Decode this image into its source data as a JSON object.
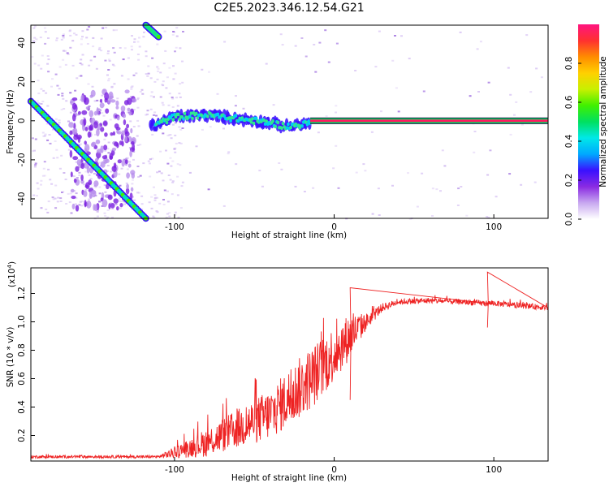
{
  "title": "C2E5.2023.346.12.54.G21",
  "chart_data": [
    {
      "type": "heatmap",
      "xlabel": "Height of straight line (km)",
      "ylabel": "Frequency (Hz)",
      "xlim": [
        -190,
        134
      ],
      "ylim": [
        -50,
        49
      ],
      "xticks": [
        -100,
        0,
        100
      ],
      "yticks": [
        -40,
        -20,
        0,
        20,
        40
      ],
      "colorbar": {
        "label": "Normalized spectral amplitude",
        "range": [
          0,
          1
        ],
        "ticks": [
          "0.0",
          "0.2",
          "0.4",
          "0.6",
          "0.8"
        ],
        "colors": [
          "#ffffff",
          "#c8a8f0",
          "#8a2be2",
          "#3a10ff",
          "#00a8ff",
          "#00e8e8",
          "#00e060",
          "#40f000",
          "#c8f000",
          "#ffd000",
          "#ff8c00",
          "#ff3030",
          "#ff1480"
        ]
      },
      "tracks": [
        {
          "name_desc": "",
          "x": [
            -190,
            -118
          ],
          "y": [
            10,
            -50
          ]
        },
        {
          "x": [
            -118,
            -110
          ],
          "y": [
            49,
            43
          ]
        },
        {
          "x": [
            -115,
            -100,
            -80,
            -60,
            -40,
            -30,
            -20,
            -10,
            0,
            10,
            20,
            134
          ],
          "y": [
            -3,
            2,
            3,
            1,
            -1,
            -3,
            -2,
            0,
            0,
            0,
            0,
            0
          ]
        }
      ]
    },
    {
      "type": "line",
      "xlabel": "Height of straight line (km)",
      "ylabel": "SNR (10 * v/v)",
      "yscale_label": "(x10",
      "yscale_exp": "4",
      "xlim": [
        -190,
        134
      ],
      "ylim": [
        0.02,
        1.38
      ],
      "xticks": [
        -100,
        0,
        100
      ],
      "yticks": [
        "0.2",
        "0.4",
        "0.6",
        "0.8",
        "1.0",
        "1.2"
      ],
      "color": "#ee2222",
      "envelope": {
        "x": [
          -190,
          -140,
          -110,
          -100,
          -80,
          -60,
          -40,
          -30,
          -20,
          -10,
          0,
          10,
          20,
          30,
          40,
          60,
          80,
          95,
          100,
          110,
          134
        ],
        "y": [
          0.05,
          0.05,
          0.05,
          0.08,
          0.15,
          0.25,
          0.35,
          0.45,
          0.55,
          0.65,
          0.78,
          0.9,
          1.0,
          1.1,
          1.14,
          1.15,
          1.14,
          1.13,
          1.13,
          1.12,
          1.1
        ],
        "noise": [
          0.01,
          0.01,
          0.01,
          0.04,
          0.1,
          0.14,
          0.18,
          0.2,
          0.22,
          0.22,
          0.2,
          0.16,
          0.06,
          0.03,
          0.02,
          0.02,
          0.02,
          0.02,
          0.02,
          0.02,
          0.02
        ]
      },
      "spikes": [
        {
          "x": 96,
          "y": 1.35
        },
        {
          "x": 96,
          "y": 0.96
        },
        {
          "x": 10,
          "y": 1.24
        },
        {
          "x": 10,
          "y": 0.45
        }
      ]
    }
  ]
}
